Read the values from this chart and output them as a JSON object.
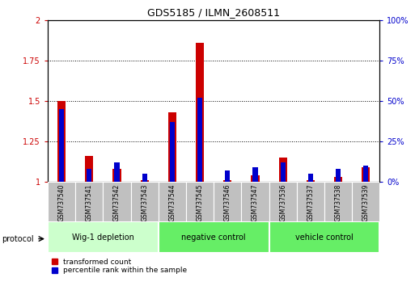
{
  "title": "GDS5185 / ILMN_2608511",
  "samples": [
    "GSM737540",
    "GSM737541",
    "GSM737542",
    "GSM737543",
    "GSM737544",
    "GSM737545",
    "GSM737546",
    "GSM737547",
    "GSM737536",
    "GSM737537",
    "GSM737538",
    "GSM737539"
  ],
  "red_values": [
    1.5,
    1.16,
    1.08,
    1.01,
    1.43,
    1.86,
    1.01,
    1.04,
    1.15,
    1.01,
    1.03,
    1.09
  ],
  "blue_pct": [
    45,
    8,
    12,
    5,
    37,
    52,
    7,
    9,
    12,
    5,
    8,
    10
  ],
  "ylim_left": [
    1.0,
    2.0
  ],
  "ylim_right": [
    0,
    100
  ],
  "yticks_left": [
    1.0,
    1.25,
    1.5,
    1.75,
    2.0
  ],
  "ytick_labels_left": [
    "1",
    "1.25",
    "1.5",
    "1.75",
    "2"
  ],
  "yticks_right": [
    0,
    25,
    50,
    75,
    100
  ],
  "ytick_labels_right": [
    "0%",
    "25%",
    "50%",
    "75%",
    "100%"
  ],
  "groups": [
    {
      "label": "Wig-1 depletion",
      "start": 0,
      "end": 3,
      "color": "#ccffcc"
    },
    {
      "label": "negative control",
      "start": 4,
      "end": 7,
      "color": "#66ee66"
    },
    {
      "label": "vehicle control",
      "start": 8,
      "end": 11,
      "color": "#66ee66"
    }
  ],
  "protocol_label": "protocol",
  "red_color": "#cc0000",
  "blue_color": "#0000cc",
  "bar_width": 0.3,
  "grid_color": "black",
  "legend_red": "transformed count",
  "legend_blue": "percentile rank within the sample",
  "tick_color_left": "#cc0000",
  "tick_color_right": "#0000cc",
  "sample_box_color": "#c0c0c0",
  "bg_plot": "#ffffff"
}
